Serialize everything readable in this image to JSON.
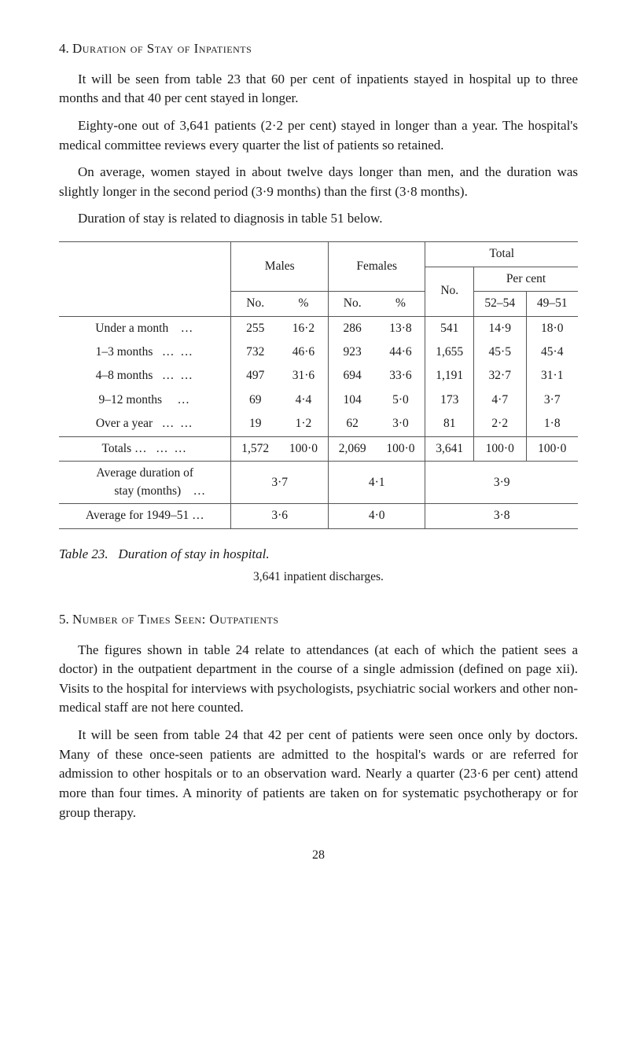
{
  "section4": {
    "heading_num": "4.",
    "heading_title": "Duration of Stay of Inpatients",
    "para1": "It will be seen from table 23 that 60 per cent of inpatients stayed in hospital up to three months and that 40 per cent stayed in longer.",
    "para2": "Eighty-one out of 3,641 patients (2·2 per cent) stayed in longer than a year. The hospital's medical committee reviews every quarter the list of patients so retained.",
    "para3": "On average, women stayed in about twelve days longer than men, and the duration was slightly longer in the second period (3·9 months) than the first (3·8 months).",
    "para4": "Duration of stay is related to diagnosis in table 51 below."
  },
  "table23": {
    "col_headers": {
      "males": "Males",
      "females": "Females",
      "total": "Total",
      "no": "No.",
      "pct": "%",
      "percent": "Per cent",
      "range1": "52–54",
      "range2": "49–51"
    },
    "rows": [
      {
        "label": "Under a month",
        "dots": "…",
        "m_no": "255",
        "m_pct": "16·2",
        "f_no": "286",
        "f_pct": "13·8",
        "t_no": "541",
        "t_pc1": "14·9",
        "t_pc2": "18·0"
      },
      {
        "label": "1–3 months",
        "dots": "…     …",
        "m_no": "732",
        "m_pct": "46·6",
        "f_no": "923",
        "f_pct": "44·6",
        "t_no": "1,655",
        "t_pc1": "45·5",
        "t_pc2": "45·4"
      },
      {
        "label": "4–8 months",
        "dots": "…     …",
        "m_no": "497",
        "m_pct": "31·6",
        "f_no": "694",
        "f_pct": "33·6",
        "t_no": "1,191",
        "t_pc1": "32·7",
        "t_pc2": "31·1"
      },
      {
        "label": "9–12 months",
        "dots": "…",
        "m_no": "69",
        "m_pct": "4·4",
        "f_no": "104",
        "f_pct": "5·0",
        "t_no": "173",
        "t_pc1": "4·7",
        "t_pc2": "3·7"
      },
      {
        "label": "Over a year",
        "dots": "…     …",
        "m_no": "19",
        "m_pct": "1·2",
        "f_no": "62",
        "f_pct": "3·0",
        "t_no": "81",
        "t_pc1": "2·2",
        "t_pc2": "1·8"
      }
    ],
    "totals": {
      "label": "Totals …",
      "dots": "…     …",
      "m_no": "1,572",
      "m_pct": "100·0",
      "f_no": "2,069",
      "f_pct": "100·0",
      "t_no": "3,641",
      "t_pc1": "100·0",
      "t_pc2": "100·0"
    },
    "avg_duration": {
      "label1": "Average   duration   of",
      "label2": "stay (months)",
      "dots": "…",
      "males": "3·7",
      "females": "4·1",
      "total": "3·9"
    },
    "avg_period": {
      "label": "Average for 1949–51 …",
      "males": "3·6",
      "females": "4·0",
      "total": "3·8"
    },
    "caption_num": "Table 23.",
    "caption_title": "Duration of stay in hospital.",
    "sub_caption": "3,641 inpatient discharges."
  },
  "section5": {
    "heading_num": "5.",
    "heading_title": "Number of Times Seen: Outpatients",
    "para1": "The figures shown in table 24 relate to attendances (at each of which the patient sees a doctor) in the outpatient department in the course of a single admission (defined on page xii). Visits to the hospital for interviews with psychologists, psychiatric social workers and other non-medical staff are not here counted.",
    "para2": "It will be seen from table 24 that 42 per cent of patients were seen once only by doctors. Many of these once-seen patients are admitted to the hospital's wards or are referred for admission to other hospitals or to an observation ward. Nearly a quarter (23·6 per cent) attend more than four times. A minority of patients are taken on for systematic psychotherapy or for group therapy."
  },
  "page_number": "28"
}
